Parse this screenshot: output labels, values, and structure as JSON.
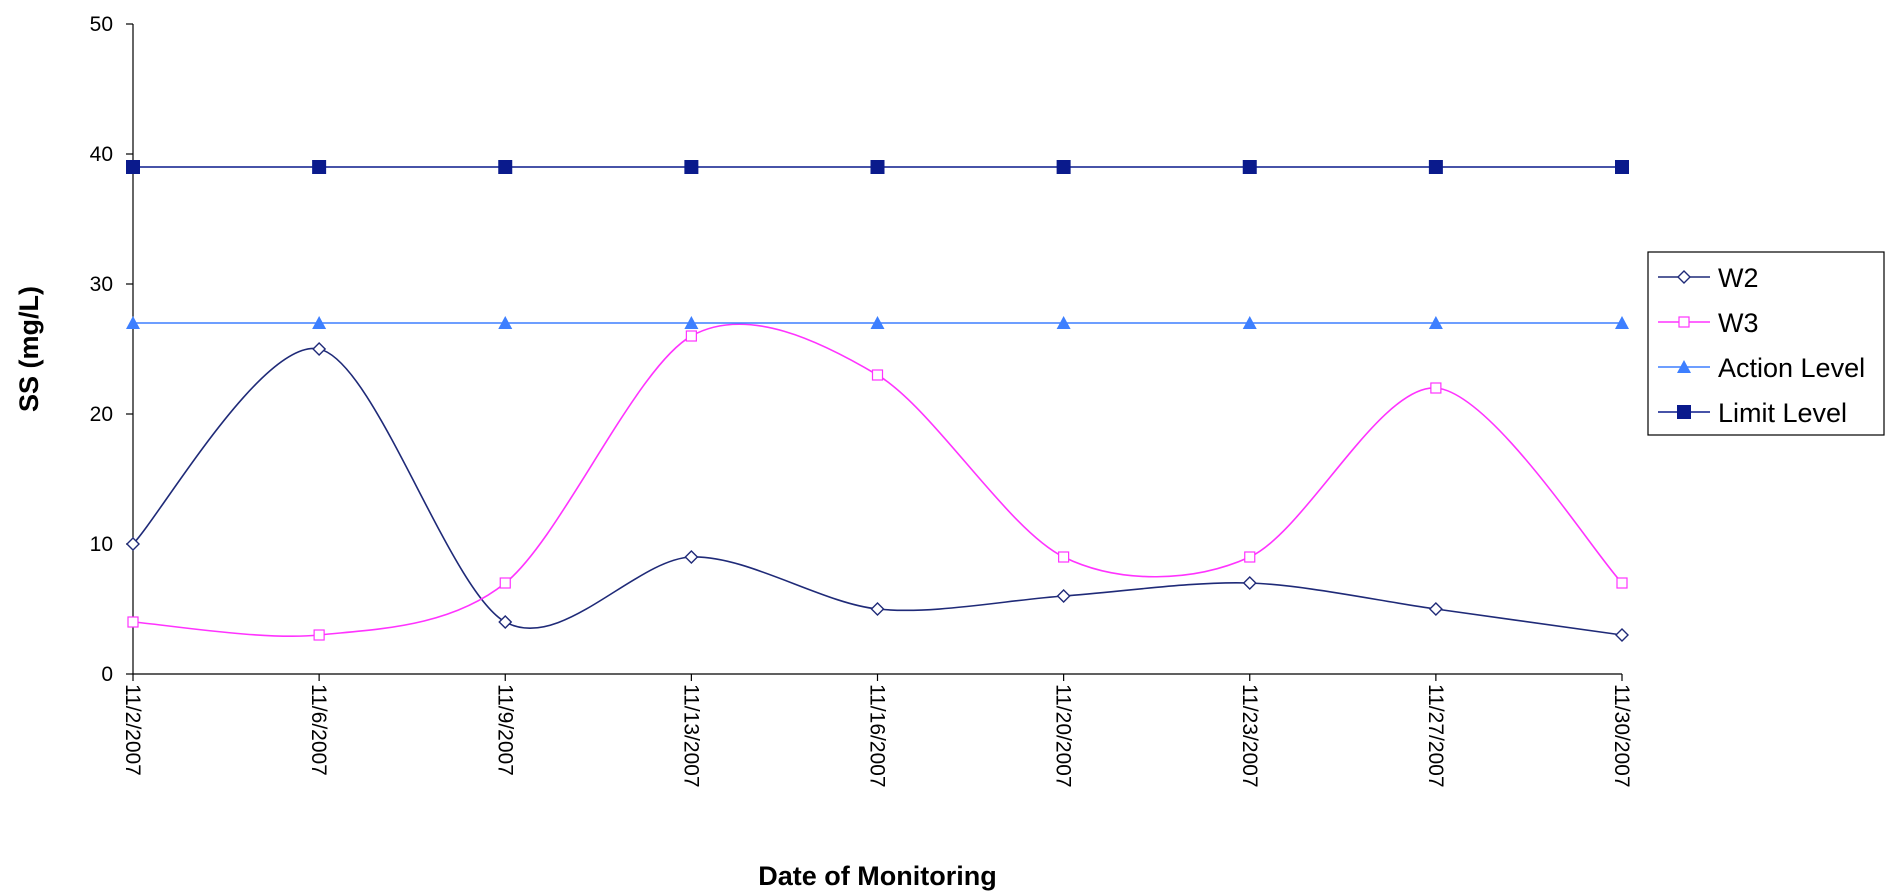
{
  "chart_data": {
    "type": "line",
    "title": "",
    "xlabel": "Date of Monitoring",
    "ylabel": "SS (mg/L)",
    "categories": [
      "11/2/2007",
      "11/6/2007",
      "11/9/2007",
      "11/13/2007",
      "11/16/2007",
      "11/20/2007",
      "11/23/2007",
      "11/27/2007",
      "11/30/2007"
    ],
    "ylim": [
      0,
      50
    ],
    "yticks": [
      "0",
      "10",
      "20",
      "30",
      "40",
      "50"
    ],
    "grid": false,
    "legend_position": "right",
    "series": [
      {
        "name": "W2",
        "values": [
          10,
          25,
          4,
          9,
          5,
          6,
          7,
          5,
          3
        ],
        "color": "#1f2a78",
        "marker": "diamond-open",
        "smooth": true
      },
      {
        "name": "W3",
        "values": [
          4,
          3,
          7,
          26,
          23,
          9,
          9,
          22,
          7
        ],
        "color": "#ff33ff",
        "marker": "square-open",
        "smooth": true
      },
      {
        "name": "Action Level",
        "values": [
          27,
          27,
          27,
          27,
          27,
          27,
          27,
          27,
          27
        ],
        "color": "#3d7fff",
        "marker": "triangle-filled",
        "smooth": false
      },
      {
        "name": "Limit Level",
        "values": [
          39,
          39,
          39,
          39,
          39,
          39,
          39,
          39,
          39
        ],
        "color": "#0a1a8c",
        "marker": "square-filled",
        "smooth": false
      }
    ]
  }
}
